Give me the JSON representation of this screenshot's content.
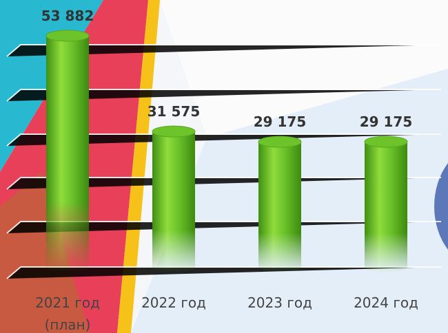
{
  "chart_data": {
    "type": "bar",
    "categories": [
      "2021 год (план)",
      "2022 год",
      "2023 год",
      "2024 год"
    ],
    "values": [
      53882,
      31575,
      29175,
      29175
    ],
    "value_labels": [
      "53 882",
      "31 575",
      "29 175",
      "29 175"
    ],
    "color": "#6cc32a"
  }
}
